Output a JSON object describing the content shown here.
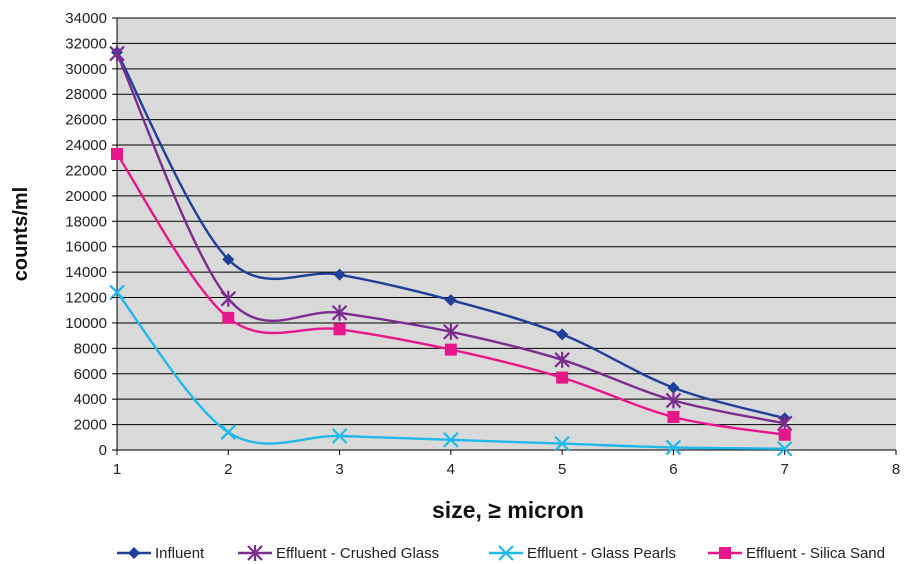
{
  "chart_data": {
    "type": "line",
    "title": "",
    "xlabel": "size, ≥ micron",
    "ylabel": "counts/ml",
    "xlim": [
      1,
      8
    ],
    "ylim": [
      0,
      34000
    ],
    "x_ticks": [
      1,
      2,
      3,
      4,
      5,
      6,
      7,
      8
    ],
    "y_ticks": [
      0,
      2000,
      4000,
      6000,
      8000,
      10000,
      12000,
      14000,
      16000,
      18000,
      20000,
      22000,
      24000,
      26000,
      28000,
      30000,
      32000,
      34000
    ],
    "grid": "horizontal",
    "plot_background": "#d9d9d9",
    "legend_position": "bottom",
    "series": [
      {
        "name": "Influent",
        "color": "#1f3f99",
        "marker": "diamond",
        "x": [
          1,
          2,
          3,
          4,
          5,
          6,
          7
        ],
        "y": [
          31300,
          15000,
          13800,
          11800,
          9100,
          4900,
          2500
        ]
      },
      {
        "name": "Effluent - Crushed Glass",
        "color": "#7b2c8f",
        "marker": "asterisk",
        "x": [
          1,
          2,
          3,
          4,
          5,
          6,
          7
        ],
        "y": [
          31200,
          11900,
          10800,
          9300,
          7100,
          3900,
          2100
        ]
      },
      {
        "name": "Effluent - Glass Pearls",
        "color": "#1fb8e8",
        "marker": "x",
        "x": [
          1,
          2,
          3,
          4,
          5,
          6,
          7
        ],
        "y": [
          12400,
          1400,
          1100,
          800,
          500,
          200,
          100
        ]
      },
      {
        "name": "Effluent - Silica Sand",
        "color": "#e6178a",
        "marker": "square",
        "x": [
          1,
          2,
          3,
          4,
          5,
          6,
          7
        ],
        "y": [
          23300,
          10400,
          9500,
          7900,
          5700,
          2600,
          1200
        ]
      }
    ]
  }
}
